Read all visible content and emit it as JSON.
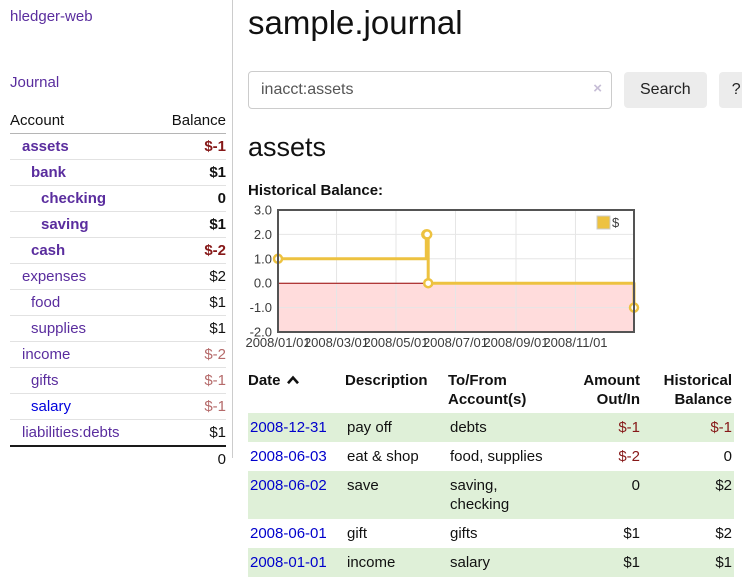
{
  "sidebar": {
    "app_title": "hledger-web",
    "nav_journal": "Journal",
    "accounts_table": {
      "header_account": "Account",
      "header_balance": "Balance",
      "rows": [
        {
          "name": "assets",
          "indent": 1,
          "bold": true,
          "name_color": "purple",
          "balance": "$-1",
          "balance_style": "neg-strong"
        },
        {
          "name": "bank",
          "indent": 2,
          "bold": true,
          "name_color": "purple",
          "balance": "$1",
          "balance_style": "pos"
        },
        {
          "name": "checking",
          "indent": 3,
          "bold": true,
          "name_color": "purple",
          "balance": "0",
          "balance_style": "pos"
        },
        {
          "name": "saving",
          "indent": 3,
          "bold": true,
          "name_color": "purple",
          "balance": "$1",
          "balance_style": "pos"
        },
        {
          "name": "cash",
          "indent": 2,
          "bold": true,
          "name_color": "purple",
          "balance": "$-2",
          "balance_style": "neg-strong"
        },
        {
          "name": "expenses",
          "indent": 1,
          "bold": false,
          "name_color": "purple",
          "balance": "$2",
          "balance_style": "pos"
        },
        {
          "name": "food",
          "indent": 2,
          "bold": false,
          "name_color": "purple",
          "balance": "$1",
          "balance_style": "pos"
        },
        {
          "name": "supplies",
          "indent": 2,
          "bold": false,
          "name_color": "purple",
          "balance": "$1",
          "balance_style": "pos"
        },
        {
          "name": "income",
          "indent": 1,
          "bold": false,
          "name_color": "purple",
          "balance": "$-2",
          "balance_style": "neg-soft"
        },
        {
          "name": "gifts",
          "indent": 2,
          "bold": false,
          "name_color": "purple",
          "balance": "$-1",
          "balance_style": "neg-soft"
        },
        {
          "name": "salary",
          "indent": 2,
          "bold": false,
          "name_color": "blue",
          "balance": "$-1",
          "balance_style": "neg-soft"
        },
        {
          "name": "liabilities:debts",
          "indent": 1,
          "bold": false,
          "name_color": "purple",
          "balance": "$1",
          "balance_style": "pos"
        }
      ],
      "total": "0"
    }
  },
  "header": {
    "title": "sample.journal"
  },
  "search": {
    "value": "inacct:assets",
    "clear_icon": "×",
    "button_label": "Search",
    "help_label": "?"
  },
  "main": {
    "section_title": "assets",
    "chart_label": "Historical Balance:"
  },
  "chart_data": {
    "type": "line",
    "title": "Historical Balance",
    "step": true,
    "series": [
      {
        "name": "$",
        "color": "#edc240",
        "points": [
          [
            "2008-01-01",
            1
          ],
          [
            "2008-06-01",
            2
          ],
          [
            "2008-06-02",
            2
          ],
          [
            "2008-06-03",
            0
          ],
          [
            "2008-12-31",
            -1
          ]
        ]
      }
    ],
    "x_range": [
      "2008-01-01",
      "2008-12-31"
    ],
    "ylim": [
      -2,
      3
    ],
    "y_ticks": [
      3,
      2,
      1,
      0,
      -1,
      -2
    ],
    "y_tick_labels": [
      "3.0",
      "2.0",
      "1.0",
      "0.0",
      "-1.0",
      "-2.0"
    ],
    "x_tick_dates": [
      "2008-01-01",
      "2008-03-01",
      "2008-05-01",
      "2008-07-01",
      "2008-09-01",
      "2008-11-01"
    ],
    "x_tick_labels": [
      "2008/01/01",
      "2008/03/01",
      "2008/05/01",
      "2008/07/01",
      "2008/09/01",
      "2008/11/01"
    ],
    "legend": {
      "label": "$",
      "position": "top-right"
    },
    "grid": true,
    "negative_fill": "#ffdcdc",
    "zero_line_color": "#990000",
    "grid_color": "#e6e6e6",
    "border_color": "#545454"
  },
  "register_table": {
    "headers": {
      "date": "Date",
      "description": "Description",
      "accounts": "To/From Account(s)",
      "amount": "Amount Out/In",
      "balance": "Historical Balance"
    },
    "rows": [
      {
        "date": "2008-12-31",
        "description": "pay off",
        "accounts": "debts",
        "amount": "$-1",
        "amount_neg": true,
        "balance": "$-1",
        "balance_neg": true
      },
      {
        "date": "2008-06-03",
        "description": "eat & shop",
        "accounts": "food, supplies",
        "amount": "$-2",
        "amount_neg": true,
        "balance": "0",
        "balance_neg": false
      },
      {
        "date": "2008-06-02",
        "description": "save",
        "accounts": "saving, checking",
        "amount": "0",
        "amount_neg": false,
        "balance": "$2",
        "balance_neg": false
      },
      {
        "date": "2008-06-01",
        "description": "gift",
        "accounts": "gifts",
        "amount": "$1",
        "amount_neg": false,
        "balance": "$2",
        "balance_neg": false
      },
      {
        "date": "2008-01-01",
        "description": "income",
        "accounts": "salary",
        "amount": "$1",
        "amount_neg": false,
        "balance": "$1",
        "balance_neg": false
      }
    ]
  },
  "colors": {
    "link_purple": "#5a2d9e",
    "link_blue": "#0000cc",
    "neg_strong": "#861818",
    "neg_soft": "#b56a6a",
    "row_green": "#dff0d8",
    "series_yellow": "#edc240"
  }
}
